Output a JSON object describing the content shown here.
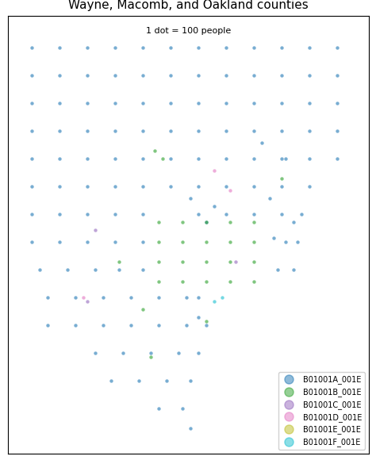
{
  "chart_data": {
    "type": "scatter",
    "title": "Wayne, Macomb, and Oakland counties",
    "annotation": "1 dot = 100 people",
    "xlim": [
      0,
      455
    ],
    "ylim": [
      0,
      552
    ],
    "tick_labels": false,
    "legend": "lower right",
    "marker": "o",
    "series": [
      {
        "name": "B01001A_001E",
        "color": "#1f77b4",
        "x": [
          30,
          65,
          100,
          135,
          170,
          205,
          240,
          275,
          310,
          345,
          380,
          415,
          30,
          65,
          100,
          135,
          170,
          205,
          240,
          275,
          310,
          345,
          380,
          415,
          30,
          65,
          100,
          135,
          170,
          205,
          240,
          275,
          310,
          345,
          380,
          415,
          30,
          65,
          100,
          135,
          170,
          205,
          240,
          275,
          310,
          345,
          380,
          415,
          30,
          65,
          100,
          135,
          170,
          205,
          240,
          275,
          310,
          345,
          380,
          415,
          30,
          65,
          100,
          135,
          170,
          205,
          240,
          275,
          310,
          345,
          380,
          30,
          65,
          100,
          135,
          170,
          240,
          275,
          310,
          345,
          370,
          30,
          65,
          100,
          135,
          170,
          350,
          365,
          40,
          75,
          110,
          140,
          170,
          340,
          360,
          50,
          85,
          120,
          155,
          190,
          225,
          240,
          50,
          85,
          120,
          155,
          190,
          225,
          250,
          110,
          145,
          180,
          215,
          240,
          130,
          165,
          200,
          230,
          190,
          220,
          230,
          320,
          350,
          330,
          360,
          335,
          230,
          260,
          250,
          240
        ],
        "y": [
          512,
          512,
          512,
          512,
          512,
          512,
          512,
          512,
          512,
          512,
          512,
          512,
          477,
          477,
          477,
          477,
          477,
          477,
          477,
          477,
          477,
          477,
          477,
          477,
          442,
          442,
          442,
          442,
          442,
          442,
          442,
          442,
          442,
          442,
          442,
          442,
          407,
          407,
          407,
          407,
          407,
          407,
          407,
          407,
          407,
          407,
          407,
          407,
          372,
          372,
          372,
          372,
          372,
          372,
          372,
          372,
          372,
          372,
          372,
          372,
          337,
          337,
          337,
          337,
          337,
          337,
          337,
          337,
          337,
          337,
          337,
          302,
          302,
          302,
          302,
          302,
          302,
          302,
          302,
          302,
          302,
          267,
          267,
          267,
          267,
          267,
          267,
          267,
          232,
          232,
          232,
          232,
          232,
          232,
          232,
          197,
          197,
          197,
          197,
          197,
          197,
          197,
          162,
          162,
          162,
          162,
          162,
          162,
          162,
          127,
          127,
          127,
          127,
          127,
          92,
          92,
          92,
          92,
          57,
          57,
          32,
          392,
          372,
          322,
          292,
          272,
          322,
          312,
          292,
          172
        ]
      },
      {
        "name": "B01001B_001E",
        "color": "#2ca02c",
        "x": [
          190,
          220,
          250,
          280,
          310,
          190,
          220,
          250,
          280,
          310,
          190,
          220,
          250,
          280,
          310,
          190,
          220,
          250,
          280,
          310,
          185,
          195,
          345,
          170,
          180,
          250,
          140
        ],
        "y": [
          292,
          292,
          292,
          292,
          292,
          267,
          267,
          267,
          267,
          267,
          242,
          242,
          242,
          242,
          242,
          217,
          217,
          217,
          217,
          217,
          382,
          372,
          347,
          182,
          122,
          167,
          242
        ]
      },
      {
        "name": "B01001C_001E",
        "color": "#9467bd",
        "x": [
          287,
          100,
          110
        ],
        "y": [
          242,
          192,
          282
        ]
      },
      {
        "name": "B01001D_001E",
        "color": "#e377c2",
        "x": [
          280,
          260,
          95
        ],
        "y": [
          332,
          357,
          197
        ]
      },
      {
        "name": "B01001E_001E",
        "color": "#bcbd22",
        "x": [],
        "y": []
      },
      {
        "name": "B01001F_001E",
        "color": "#17becf",
        "x": [
          260,
          270
        ],
        "y": [
          192,
          197
        ]
      }
    ]
  }
}
